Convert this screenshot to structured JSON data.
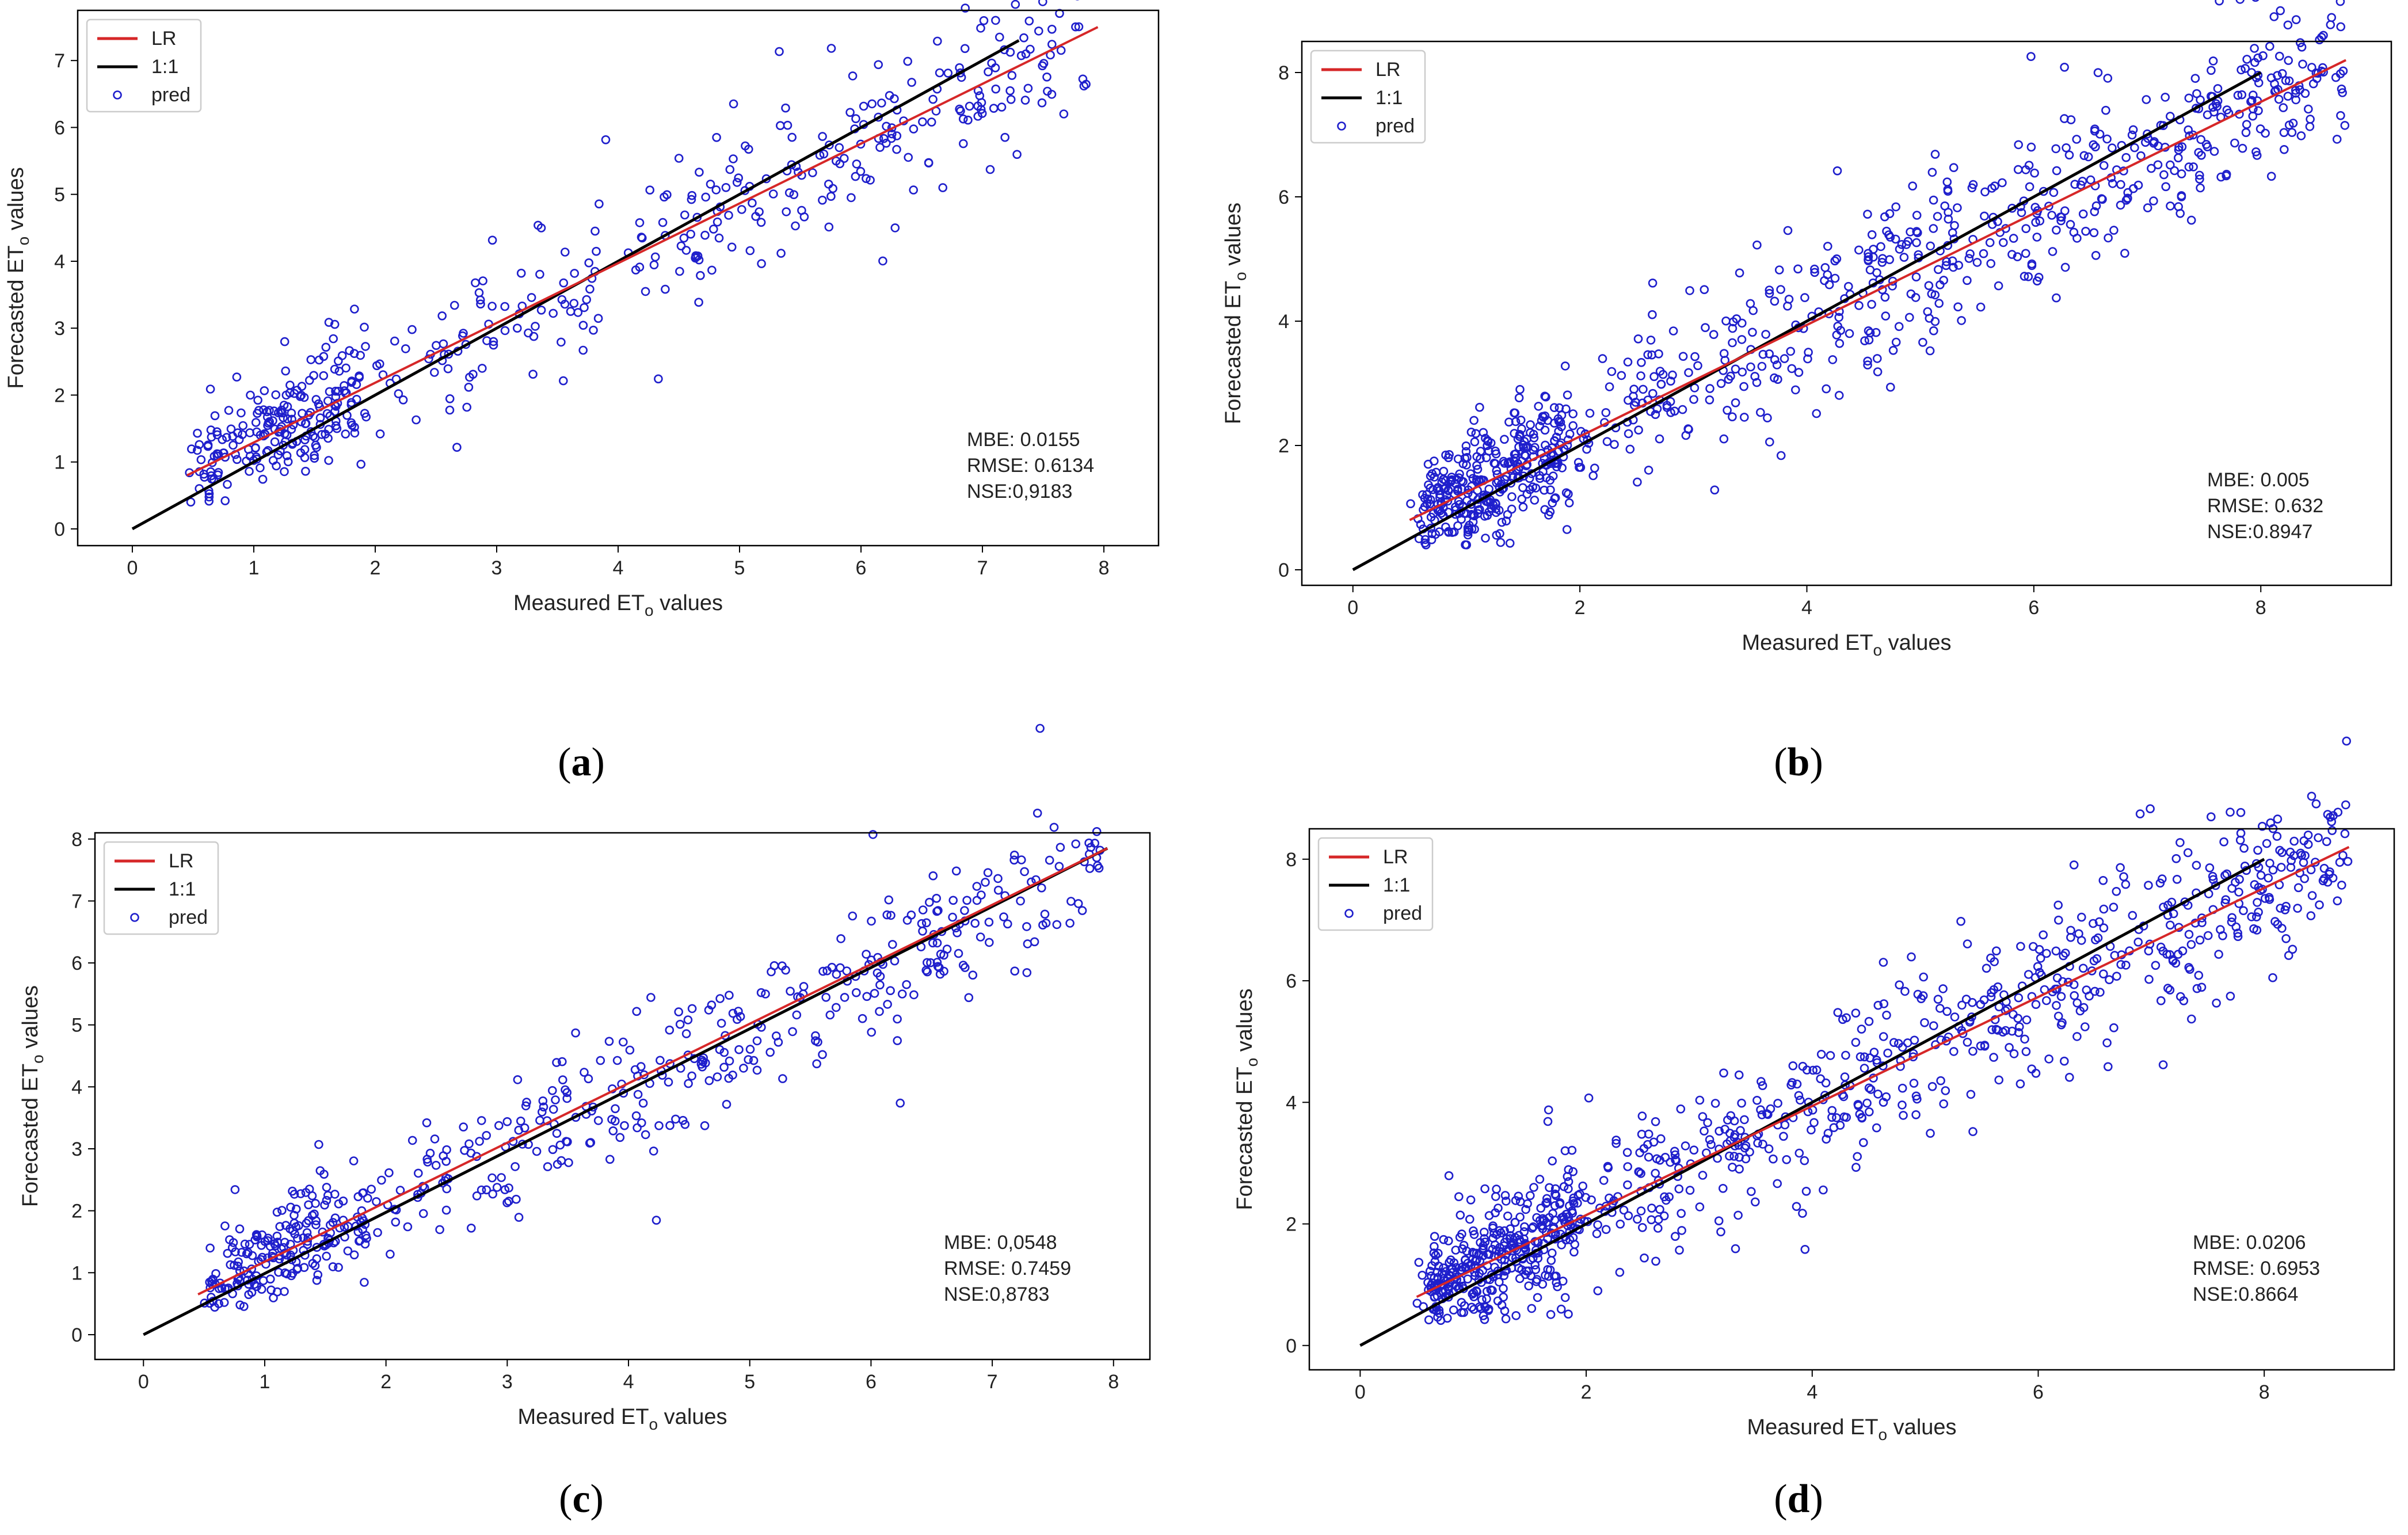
{
  "colors": {
    "lr": "#d62728",
    "one_to_one": "#000000",
    "points": "#1f1fcc",
    "frame": "#000000"
  },
  "chart_data": [
    {
      "type": "scatter",
      "panel": "a",
      "caption": "a",
      "xlabel_main": "Measured ET",
      "xlabel_sub": "o",
      "xlabel_tail": " values",
      "ylabel_main": "Forecasted ET",
      "ylabel_sub": "o",
      "ylabel_tail": " values",
      "xlim": [
        -0.45,
        8.45
      ],
      "ylim": [
        -0.25,
        7.75
      ],
      "xticks": [
        0,
        1,
        2,
        3,
        4,
        5,
        6,
        7,
        8
      ],
      "yticks": [
        0,
        1,
        2,
        3,
        4,
        5,
        6,
        7
      ],
      "legend": {
        "location": "top-left",
        "entries": [
          "LR",
          "1:1",
          "pred"
        ]
      },
      "lr_line": {
        "x": [
          0.45,
          7.95
        ],
        "y": [
          0.8,
          7.5
        ]
      },
      "one_to_one": {
        "x": [
          0,
          7.3
        ],
        "y": [
          0,
          7.3
        ]
      },
      "stats": [
        "MBE: 0.0155",
        "RMSE: 0.6134",
        "NSE:0,9183"
      ],
      "points": {
        "generator": "seeded",
        "seed": 11,
        "n": 520,
        "x_range": [
          0.45,
          7.9
        ],
        "slope": 0.885,
        "intercept": 0.42,
        "noise": 0.55
      }
    },
    {
      "type": "scatter",
      "panel": "b",
      "caption": "b",
      "xlabel_main": "Measured ET",
      "xlabel_sub": "o",
      "xlabel_tail": " values",
      "ylabel_main": "Forecasted ET",
      "ylabel_sub": "o",
      "ylabel_tail": " values",
      "xlim": [
        -0.45,
        9.15
      ],
      "ylim": [
        -0.25,
        8.5
      ],
      "xticks": [
        0,
        2,
        4,
        6,
        8
      ],
      "yticks": [
        0,
        2,
        4,
        6,
        8
      ],
      "legend": {
        "location": "top-left",
        "entries": [
          "LR",
          "1:1",
          "pred"
        ]
      },
      "lr_line": {
        "x": [
          0.5,
          8.75
        ],
        "y": [
          0.8,
          8.2
        ]
      },
      "one_to_one": {
        "x": [
          0,
          8.0
        ],
        "y": [
          0,
          8.0
        ]
      },
      "stats": [
        "MBE: 0.005",
        "RMSE: 0.632",
        "NSE:0.8947"
      ],
      "points": {
        "generator": "seeded",
        "seed": 23,
        "n": 900,
        "x_range": [
          0.5,
          8.75
        ],
        "slope": 0.9,
        "intercept": 0.35,
        "noise": 0.6
      }
    },
    {
      "type": "scatter",
      "panel": "c",
      "caption": "c",
      "xlabel_main": "Measured ET",
      "xlabel_sub": "o",
      "xlabel_tail": " values",
      "ylabel_main": "Forecasted ET",
      "ylabel_sub": "o",
      "ylabel_tail": " values",
      "xlim": [
        -0.4,
        8.3
      ],
      "ylim": [
        -0.4,
        8.1
      ],
      "xticks": [
        0,
        1,
        2,
        3,
        4,
        5,
        6,
        7,
        8
      ],
      "yticks": [
        0,
        1,
        2,
        3,
        4,
        5,
        6,
        7,
        8
      ],
      "legend": {
        "location": "top-left",
        "entries": [
          "LR",
          "1:1",
          "pred"
        ]
      },
      "lr_line": {
        "x": [
          0.45,
          7.95
        ],
        "y": [
          0.65,
          7.85
        ]
      },
      "one_to_one": {
        "x": [
          0,
          7.95
        ],
        "y": [
          0,
          7.85
        ]
      },
      "stats": [
        "MBE: 0,0548",
        "RMSE: 0.7459",
        "NSE:0,8783"
      ],
      "points": {
        "generator": "seeded",
        "seed": 37,
        "n": 560,
        "x_range": [
          0.45,
          7.9
        ],
        "slope": 0.93,
        "intercept": 0.3,
        "noise": 0.55
      }
    },
    {
      "type": "scatter",
      "panel": "d",
      "caption": "d",
      "xlabel_main": "Measured ET",
      "xlabel_sub": "o",
      "xlabel_tail": " values",
      "ylabel_main": "Forecasted ET",
      "ylabel_sub": "o",
      "ylabel_tail": " values",
      "xlim": [
        -0.45,
        9.15
      ],
      "ylim": [
        -0.4,
        8.5
      ],
      "xticks": [
        0,
        2,
        4,
        6,
        8
      ],
      "yticks": [
        0,
        2,
        4,
        6,
        8
      ],
      "legend": {
        "location": "top-left",
        "entries": [
          "LR",
          "1:1",
          "pred"
        ]
      },
      "lr_line": {
        "x": [
          0.5,
          8.75
        ],
        "y": [
          0.8,
          8.2
        ]
      },
      "one_to_one": {
        "x": [
          0,
          8.0
        ],
        "y": [
          0,
          8.0
        ]
      },
      "stats": [
        "MBE: 0.0206",
        "RMSE: 0.6953",
        "NSE:0.8664"
      ],
      "points": {
        "generator": "seeded",
        "seed": 53,
        "n": 950,
        "x_range": [
          0.5,
          8.75
        ],
        "slope": 0.89,
        "intercept": 0.4,
        "noise": 0.65
      }
    }
  ]
}
